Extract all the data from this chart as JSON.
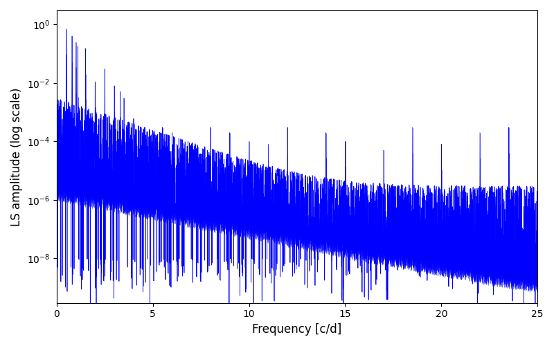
{
  "xlabel": "Frequency [c/d]",
  "ylabel": "LS amplitude (log scale)",
  "xlim": [
    0,
    25
  ],
  "ylim": [
    3e-10,
    3.0
  ],
  "yticks": [
    1e-08,
    1e-06,
    0.0001,
    0.01,
    1.0
  ],
  "xticks": [
    0,
    5,
    10,
    15,
    20,
    25
  ],
  "line_color": "#0000ff",
  "background_color": "#ffffff",
  "n_points": 8000,
  "freq_max": 25.0,
  "seed": 12345
}
